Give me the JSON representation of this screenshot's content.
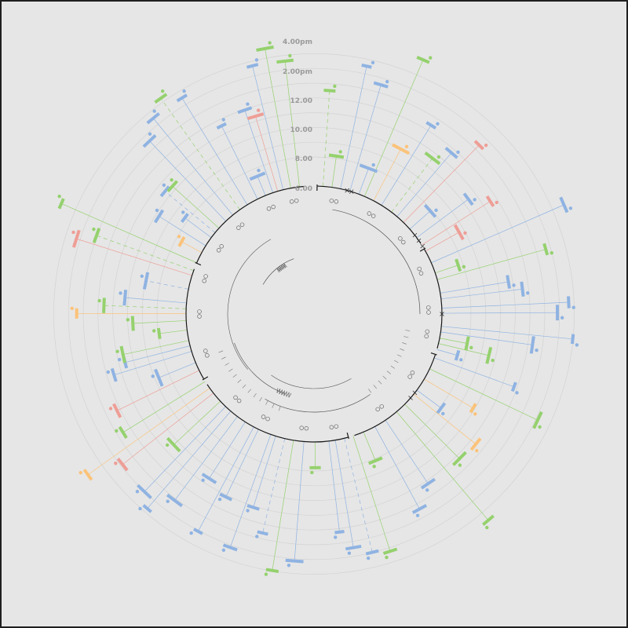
{
  "chart_data": {
    "type": "radial-timeline",
    "radial_axis": {
      "tick_labels": [
        "6.00",
        "8.00",
        "10.00",
        "12.00",
        "2.00pm",
        "4.00pm"
      ]
    },
    "colors": {
      "background": "#e6e6e6",
      "ring": "#d3d3d3",
      "axis": "#1a1a1a",
      "blue": "#8fb3e2",
      "green": "#95d16e",
      "orange": "#fbc37a",
      "red": "#ee9e96"
    }
  }
}
